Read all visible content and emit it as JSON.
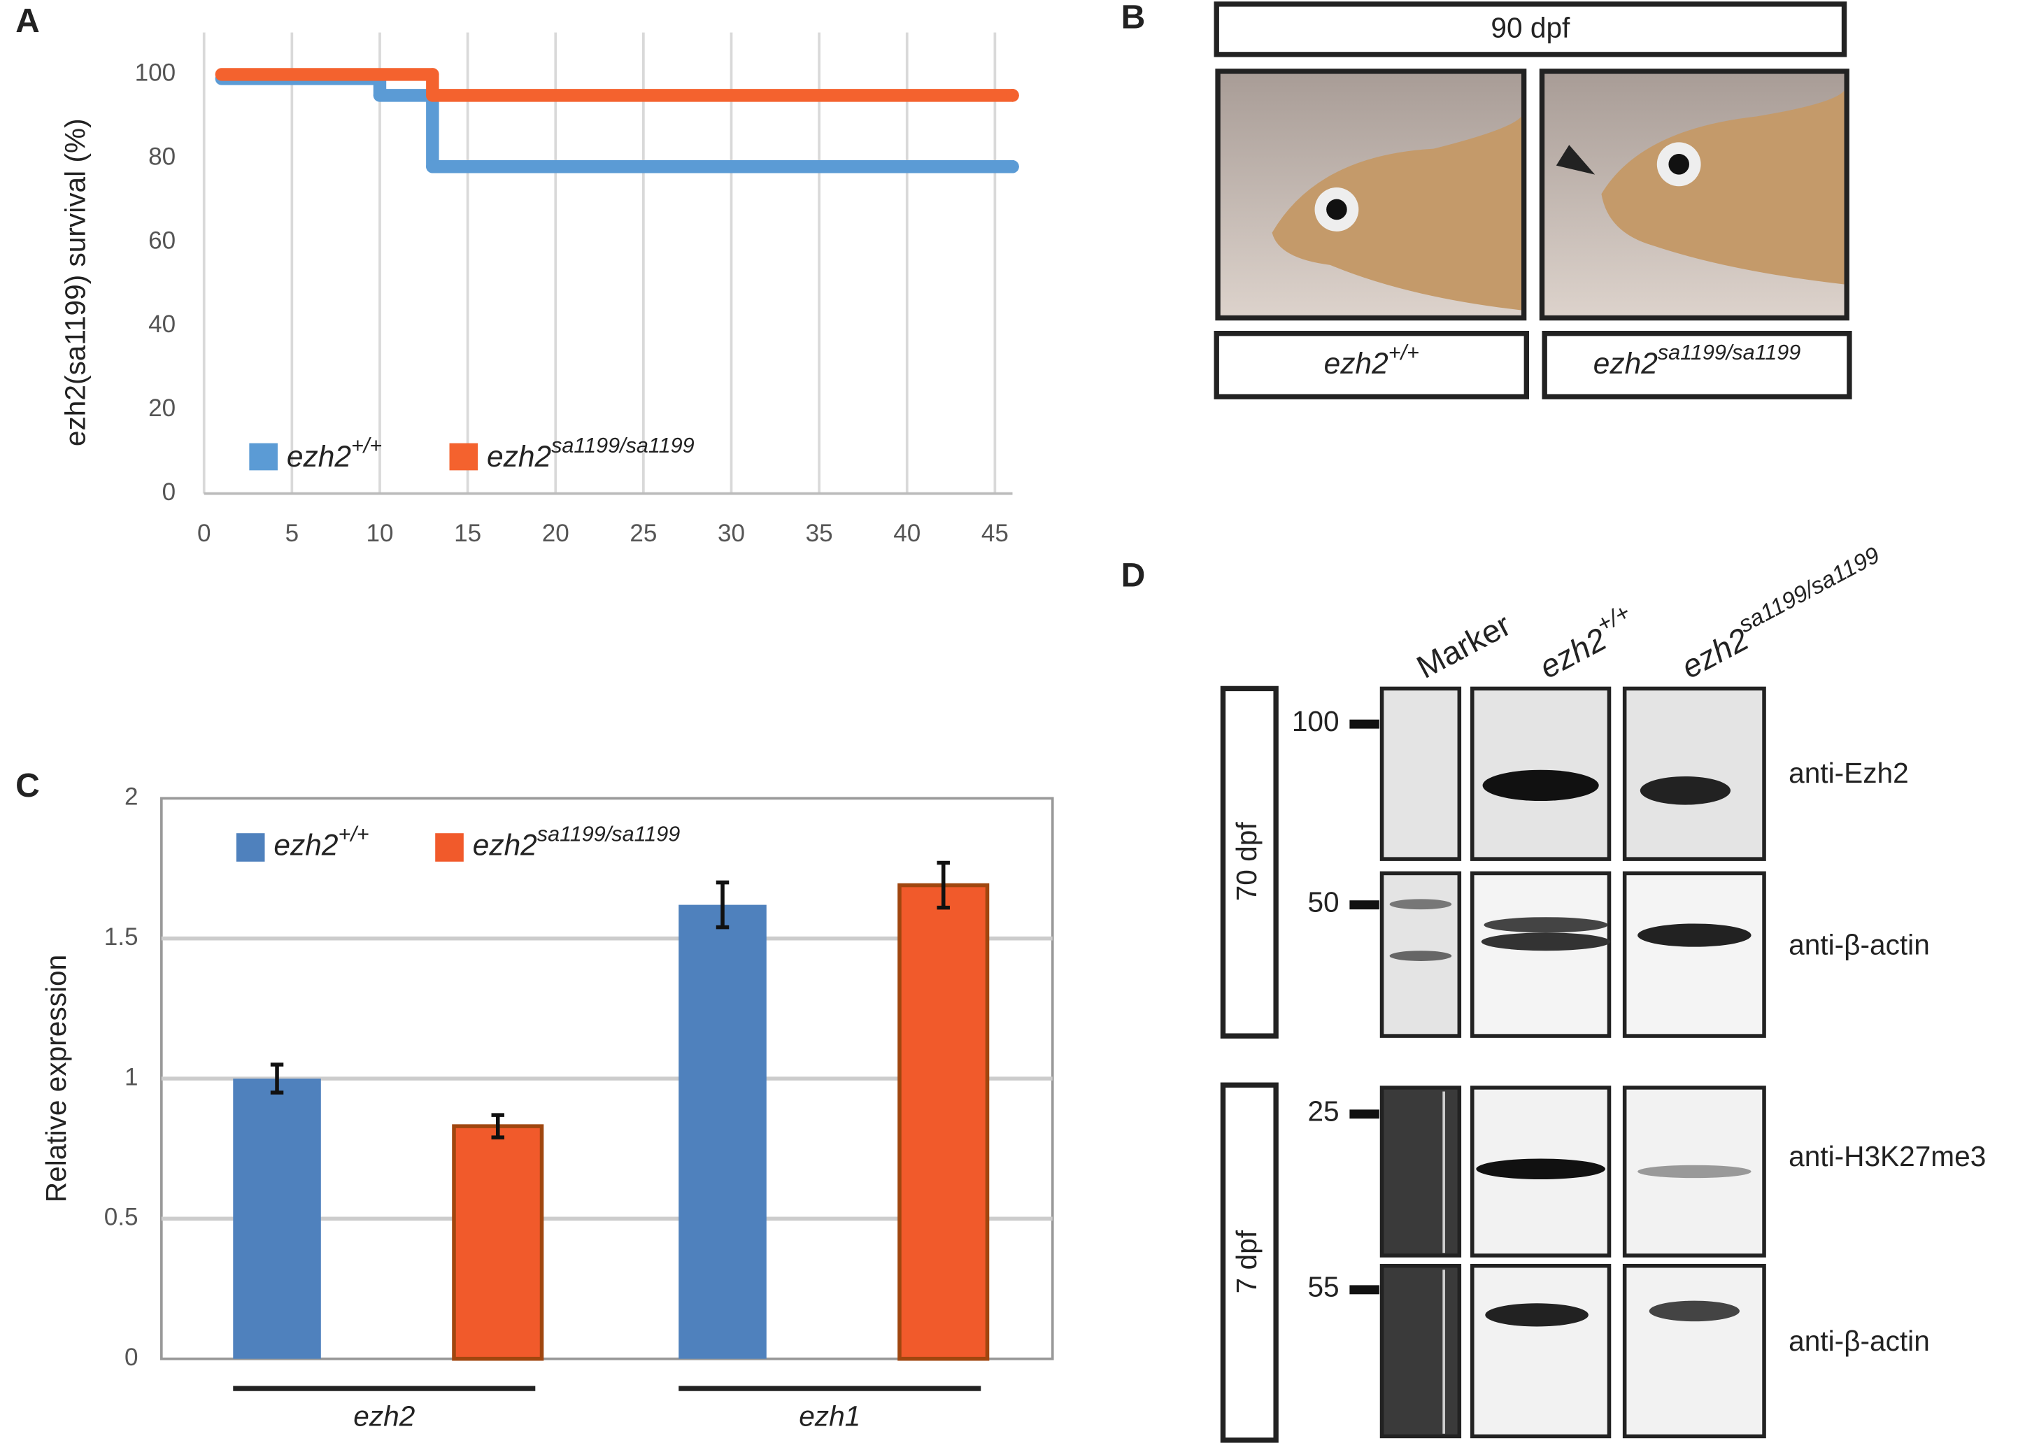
{
  "chart_data": [
    {
      "type": "line",
      "label": "A",
      "ylabel": "ezh2(sa1199) survival (%)",
      "step": "post",
      "xlim": [
        0,
        46
      ],
      "xticks": [
        0,
        5,
        10,
        15,
        20,
        25,
        30,
        35,
        40,
        45
      ],
      "ylim": [
        0,
        110
      ],
      "yticks": [
        0,
        20,
        40,
        60,
        80,
        100
      ],
      "grid": "x",
      "series": [
        {
          "name": "ezh2",
          "name_sup": "+/+",
          "color": "#5b9bd5",
          "x": [
            1,
            10,
            13,
            46
          ],
          "values": [
            99,
            95,
            78,
            78
          ]
        },
        {
          "name": "ezh2",
          "name_sup": "sa1199/sa1199",
          "color": "#f4622e",
          "x": [
            1,
            13,
            46
          ],
          "values": [
            100,
            95,
            95
          ]
        }
      ]
    },
    {
      "type": "bar",
      "label": "C",
      "ylabel": "Relative expression",
      "categories": [
        "ezh2",
        "ezh1"
      ],
      "ylim": [
        0,
        2
      ],
      "yticks": [
        0,
        0.5,
        1,
        1.5,
        2
      ],
      "grid": "y",
      "series": [
        {
          "name": "ezh2",
          "name_sup": "+/+",
          "color": "#4f81bd",
          "values": [
            1.0,
            1.62
          ],
          "errors": [
            0.05,
            0.08
          ]
        },
        {
          "name": "ezh2",
          "name_sup": "sa1199/sa1199",
          "color": "#f15a2b",
          "values": [
            0.83,
            1.69
          ],
          "errors": [
            0.04,
            0.08
          ]
        }
      ]
    }
  ],
  "panel_b": {
    "label": "B",
    "header": "90 dpf",
    "captions": [
      {
        "text": "ezh2",
        "sup": "+/+"
      },
      {
        "text": "ezh2",
        "sup": "sa1199/sa1199"
      }
    ]
  },
  "panel_d": {
    "label": "D",
    "lanes": [
      {
        "text": "Marker",
        "sup": ""
      },
      {
        "text": "ezh2",
        "sup": "+/+"
      },
      {
        "text": "ezh2",
        "sup": "sa1199/sa1199"
      }
    ],
    "stages": [
      "70 dpf",
      "7 dpf"
    ],
    "markers": [
      "100",
      "50",
      "25",
      "55"
    ],
    "antibodies": [
      "anti-Ezh2",
      "anti-β-actin",
      "anti-H3K27me3",
      "anti-β-actin"
    ]
  }
}
